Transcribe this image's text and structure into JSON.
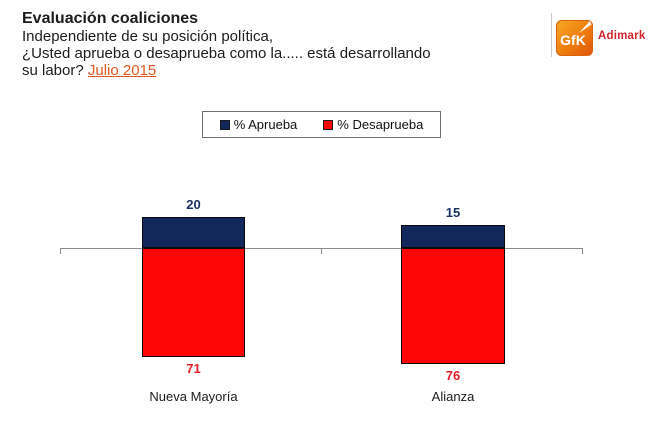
{
  "header": {
    "title": "Evaluación coaliciones",
    "line1": "Independiente de su posición política,",
    "line2": "¿Usted aprueba o desaprueba como la..... está desarrollando",
    "line3_prefix": "su labor? ",
    "line3_highlight": "Julio 2015"
  },
  "logo": {
    "gfk_text": "GfK",
    "adimark_text": "Adimark"
  },
  "legend": [
    {
      "label": "% Aprueba",
      "color": "#12275b"
    },
    {
      "label": "% Desaprueba",
      "color": "#fe0606"
    }
  ],
  "chart_data": {
    "type": "bar",
    "variant": "diverging-stacked-columns",
    "title": "Evaluación coaliciones - Julio 2015",
    "categories": [
      "Nueva Mayoría",
      "Alianza"
    ],
    "series": [
      {
        "name": "% Aprueba",
        "values": [
          20,
          15
        ],
        "color": "#12275b",
        "direction": "above-axis"
      },
      {
        "name": "% Desaprueba",
        "values": [
          71,
          76
        ],
        "color": "#fe0606",
        "direction": "below-axis"
      }
    ],
    "value_labels": true,
    "axis_baseline": 0,
    "legend_position": "top-center",
    "grid": false
  },
  "colors": {
    "approve_label": "#17325e",
    "disapprove_label": "#e01f26",
    "date_highlight": "#e0581f",
    "adimark_red": "#d2232a",
    "axis": "#8a8a8a"
  }
}
